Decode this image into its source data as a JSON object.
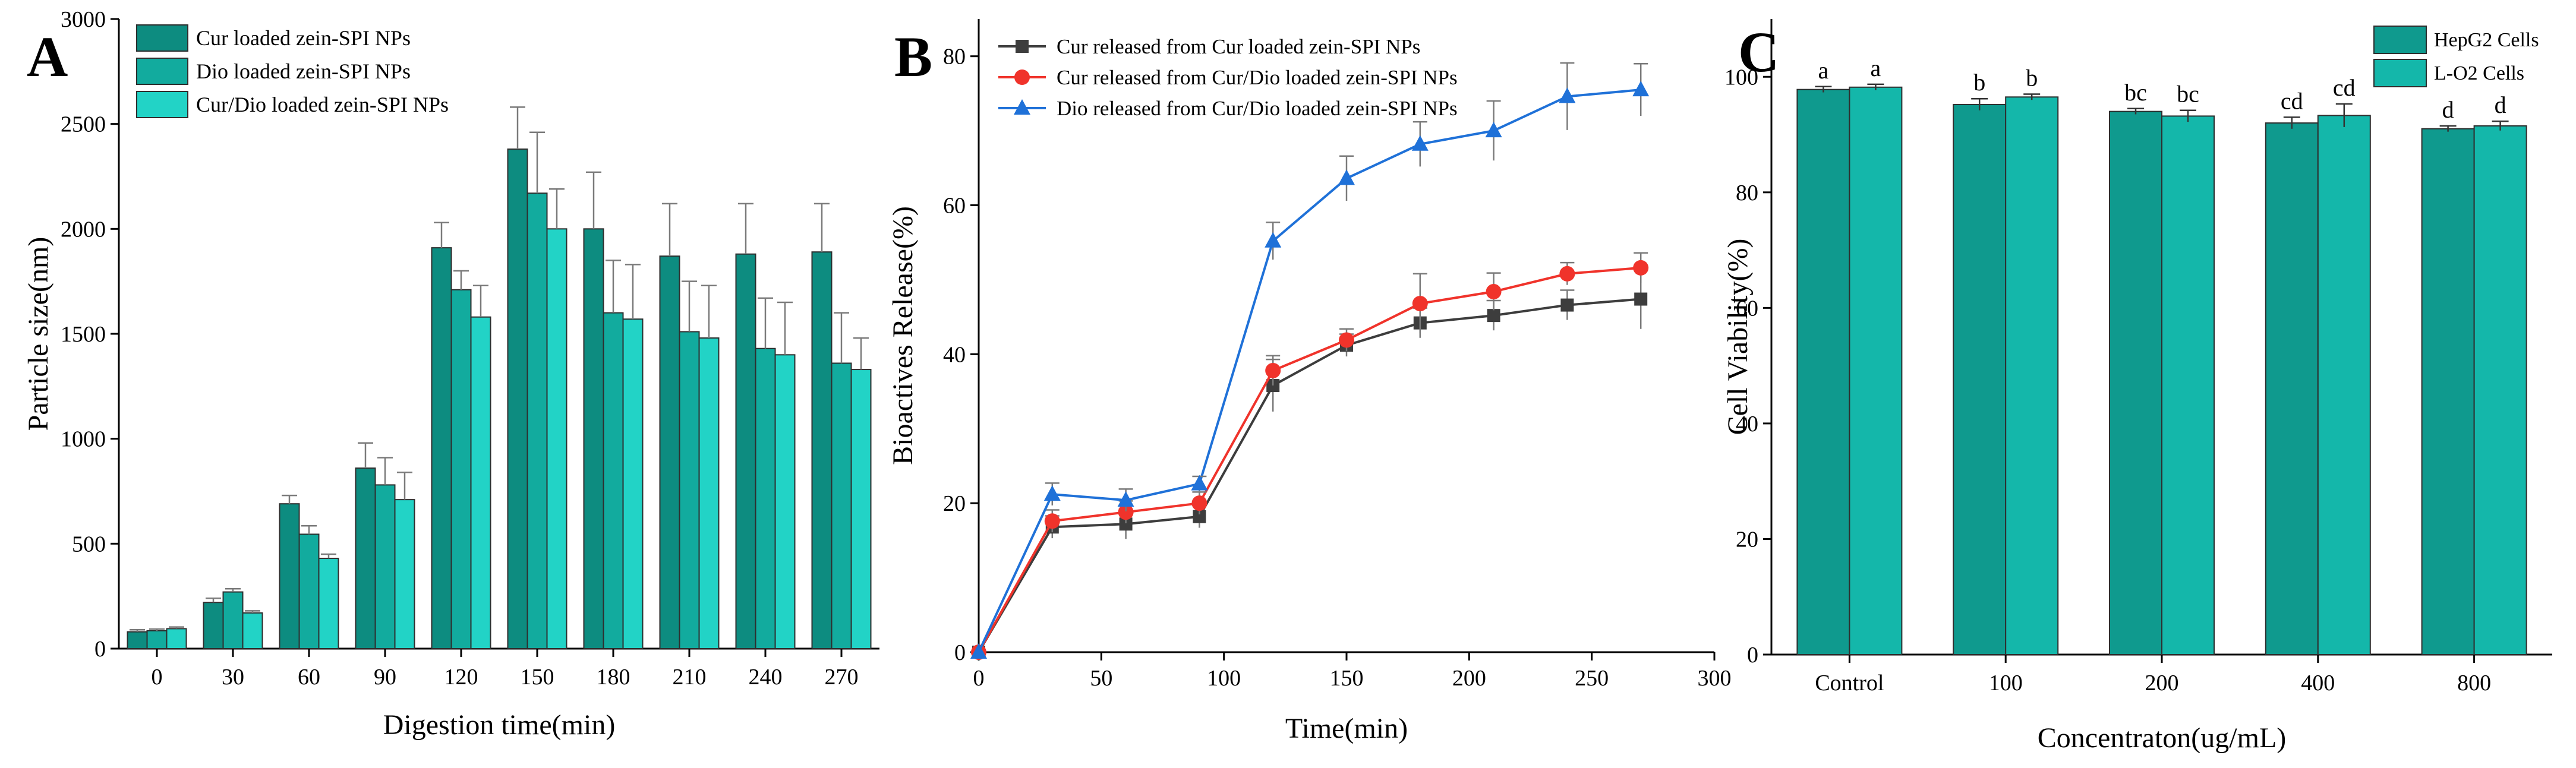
{
  "chart_data": [
    {
      "type": "bar",
      "panel_label": "A",
      "xlabel": "Digestion time(min)",
      "ylabel": "Particle size(nm)",
      "ylim": [
        0,
        3000
      ],
      "yticks": [
        0,
        500,
        1000,
        1500,
        2000,
        2500,
        3000
      ],
      "categories": [
        "0",
        "30",
        "60",
        "90",
        "120",
        "150",
        "180",
        "210",
        "240",
        "270"
      ],
      "legend_position": "top-left",
      "series": [
        {
          "name": "Cur loaded zein-SPI NPs",
          "color": "#0d8c80",
          "values": [
            80,
            220,
            690,
            860,
            1910,
            2380,
            2000,
            1870,
            1880,
            1890
          ],
          "errors": [
            10,
            20,
            40,
            120,
            120,
            200,
            270,
            250,
            240,
            230
          ]
        },
        {
          "name": "Dio loaded zein-SPI NPs",
          "color": "#12ab9e",
          "values": [
            85,
            270,
            545,
            780,
            1710,
            2170,
            1600,
            1510,
            1430,
            1360
          ],
          "errors": [
            8,
            15,
            40,
            130,
            90,
            290,
            250,
            240,
            240,
            240
          ]
        },
        {
          "name": "Cur/Dio loaded zein-SPI NPs",
          "color": "#22d3c6",
          "values": [
            95,
            170,
            430,
            710,
            1580,
            2000,
            1570,
            1480,
            1400,
            1330
          ],
          "errors": [
            8,
            10,
            20,
            130,
            150,
            190,
            260,
            250,
            250,
            150
          ]
        }
      ]
    },
    {
      "type": "line",
      "panel_label": "B",
      "xlabel": "Time(min)",
      "ylabel": "Bioactives Release(%)",
      "xlim": [
        0,
        300
      ],
      "ylim": [
        0,
        85
      ],
      "xticks": [
        0,
        50,
        100,
        150,
        200,
        250,
        300
      ],
      "yticks": [
        0,
        20,
        40,
        60,
        80
      ],
      "x": [
        0,
        30,
        60,
        90,
        120,
        150,
        180,
        210,
        240,
        270
      ],
      "legend_position": "top-left",
      "series": [
        {
          "name": "Cur released from Cur loaded zein-SPI NPs",
          "color": "#3d3d3d",
          "marker": "square",
          "values": [
            0,
            16.8,
            17.2,
            18.2,
            35.8,
            41.2,
            44.2,
            45.2,
            46.6,
            47.4
          ],
          "errors": [
            0,
            1.5,
            2,
            1.5,
            3.5,
            1.5,
            2,
            2,
            2,
            4
          ]
        },
        {
          "name": "Cur released from Cur/Dio loaded zein-SPI NPs",
          "color": "#f0332b",
          "marker": "circle",
          "values": [
            0,
            17.6,
            18.8,
            20,
            37.8,
            41.9,
            46.8,
            48.4,
            50.8,
            51.6
          ],
          "errors": [
            0,
            1.5,
            1.5,
            1.5,
            2,
            1.5,
            4,
            2.5,
            1.5,
            2
          ]
        },
        {
          "name": "Dio released from Cur/Dio loaded zein-SPI NPs",
          "color": "#1f71d8",
          "marker": "triangle",
          "values": [
            0,
            21.2,
            20.4,
            22.6,
            55.2,
            63.6,
            68.2,
            70,
            74.6,
            75.5
          ],
          "errors": [
            0,
            1.5,
            1.5,
            1,
            2.5,
            3,
            3,
            4,
            4.5,
            3.5
          ]
        }
      ]
    },
    {
      "type": "bar",
      "panel_label": "C",
      "xlabel": "Concentraton(ug/mL)",
      "ylabel": "Cell Viability(%)",
      "ylim": [
        0,
        110
      ],
      "yticks": [
        0,
        20,
        40,
        60,
        80,
        100
      ],
      "categories": [
        "Control",
        "100",
        "200",
        "400",
        "800"
      ],
      "legend_position": "top-right",
      "series": [
        {
          "name": "HepG2 Cells",
          "color": "#0f9a8e",
          "values": [
            97.8,
            95.2,
            94,
            92,
            91
          ],
          "errors": [
            0.5,
            1,
            0.5,
            1,
            0.5
          ],
          "significance": [
            "a",
            "b",
            "bc",
            "cd",
            "d"
          ]
        },
        {
          "name": "L-O2  Cells",
          "color": "#14b7aa",
          "values": [
            98.2,
            96.5,
            93.2,
            93.3,
            91.5
          ],
          "errors": [
            0.5,
            0.5,
            1,
            2,
            0.8
          ],
          "significance": [
            "a",
            "b",
            "bc",
            "cd",
            "d"
          ]
        }
      ]
    }
  ]
}
